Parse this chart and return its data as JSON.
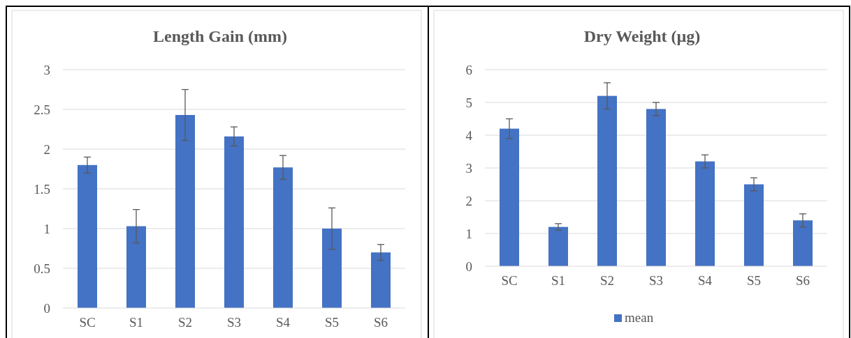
{
  "chart_data": [
    {
      "type": "bar",
      "title": "Length Gain (mm)",
      "categories": [
        "SC",
        "S1",
        "S2",
        "S3",
        "S4",
        "S5",
        "S6"
      ],
      "series": [
        {
          "color": "#4472c4",
          "values": [
            1.8,
            1.03,
            2.43,
            2.16,
            1.77,
            1.0,
            0.7
          ],
          "errors": [
            0.1,
            0.21,
            0.32,
            0.12,
            0.15,
            0.26,
            0.1
          ]
        }
      ],
      "ylim": [
        0,
        3
      ],
      "yticks": [
        0,
        0.5,
        1,
        1.5,
        2,
        2.5,
        3
      ],
      "grid": "y"
    },
    {
      "type": "bar",
      "title": "Dry Weight (µg)",
      "categories": [
        "SC",
        "S1",
        "S2",
        "S3",
        "S4",
        "S5",
        "S6"
      ],
      "series": [
        {
          "name": "mean",
          "color": "#4472c4",
          "values": [
            4.2,
            1.2,
            5.2,
            4.8,
            3.2,
            2.5,
            1.4
          ],
          "errors": [
            0.3,
            0.1,
            0.4,
            0.2,
            0.2,
            0.2,
            0.2
          ]
        }
      ],
      "ylim": [
        0,
        6
      ],
      "yticks": [
        0,
        1,
        2,
        3,
        4,
        5,
        6
      ],
      "grid": "y",
      "legend": "bottom"
    }
  ]
}
